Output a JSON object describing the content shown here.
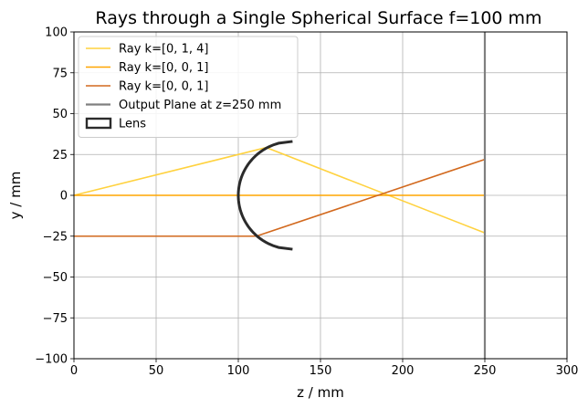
{
  "chart_data": {
    "type": "line",
    "title": "Rays through a Single Spherical Surface f=100 mm",
    "xlabel": "z / mm",
    "ylabel": "y / mm",
    "xlim": [
      0,
      300
    ],
    "ylim": [
      -100,
      100
    ],
    "xticks": [
      0,
      50,
      100,
      150,
      200,
      250,
      300
    ],
    "yticks": [
      -100,
      -75,
      -50,
      -25,
      0,
      25,
      50,
      75,
      100
    ],
    "grid": true,
    "legend_position": "top-left",
    "series": [
      {
        "name": "Ray k=[0, 1, 4]",
        "color": "#FFD23F",
        "x": [
          0,
          117,
          250
        ],
        "y": [
          0,
          29.25,
          -23
        ]
      },
      {
        "name": "Ray k=[0, 0, 1]",
        "color": "#FFA500",
        "x": [
          0,
          250
        ],
        "y": [
          0,
          0
        ]
      },
      {
        "name": "Ray k=[0, 0, 1]",
        "color": "#D2691E",
        "x": [
          0,
          111,
          250
        ],
        "y": [
          -25,
          -25,
          22
        ]
      }
    ],
    "output_plane": {
      "name": "Output Plane at z=250 mm",
      "z": 250,
      "color": "#808080"
    },
    "lens": {
      "name": "Lens",
      "color": "#2b2b2b",
      "vertex_z": 100,
      "center_z": 133,
      "radius": 33,
      "aperture": 33
    }
  }
}
